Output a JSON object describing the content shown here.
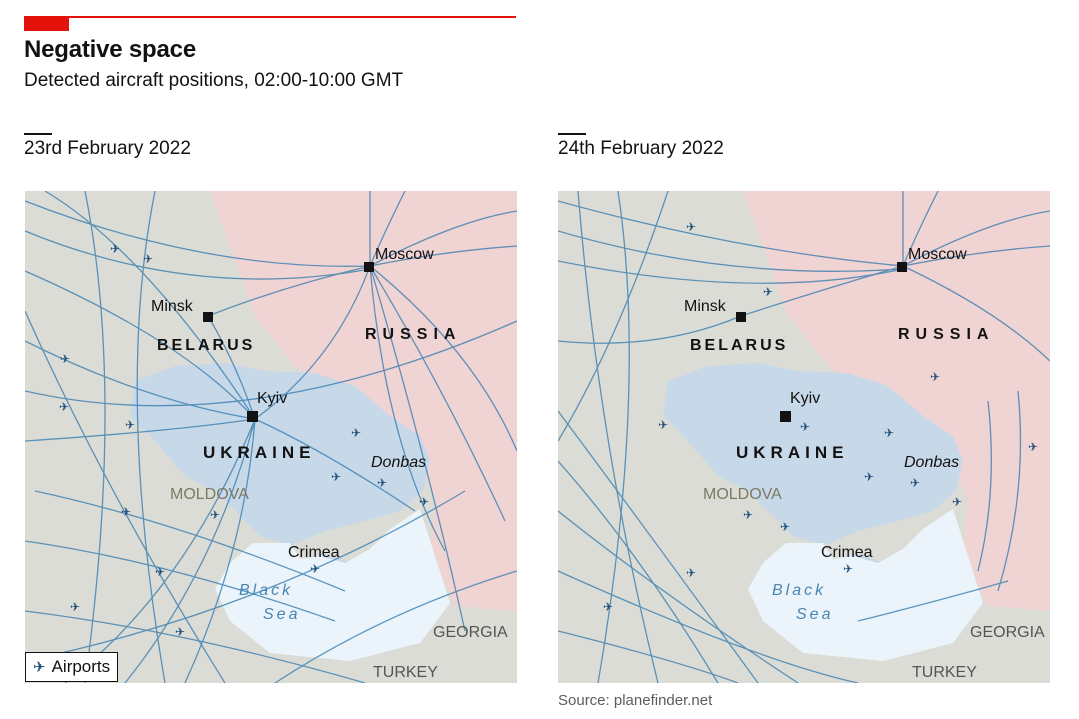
{
  "header": {
    "title": "Negative space",
    "subtitle": "Detected aircraft positions, 02:00-10:00 GMT"
  },
  "panels": [
    {
      "date": "23rd February 2022",
      "traffic": "dense"
    },
    {
      "date": "24th February 2022",
      "traffic": "avoiding-ukraine"
    }
  ],
  "labels": {
    "moscow": "Moscow",
    "minsk": "Minsk",
    "kyiv": "Kyiv",
    "russia": "RUSSIA",
    "belarus": "BELARUS",
    "ukraine": "UKRAINE",
    "donbas": "Donbas",
    "moldova": "MOLDOVA",
    "crimea": "Crimea",
    "black": "Black",
    "sea": "Sea",
    "georgia": "GEORGIA",
    "turkey": "TURKEY"
  },
  "legend": {
    "label": "Airports"
  },
  "source": "Source: planefinder.net",
  "colors": {
    "russia": "#f0d3d3",
    "ukraine": "#c7d8e8",
    "neutral": "#dcdcd6",
    "sea": "#eaf4fa",
    "tracks": "#2f78ad",
    "accent": "#e3120b"
  }
}
